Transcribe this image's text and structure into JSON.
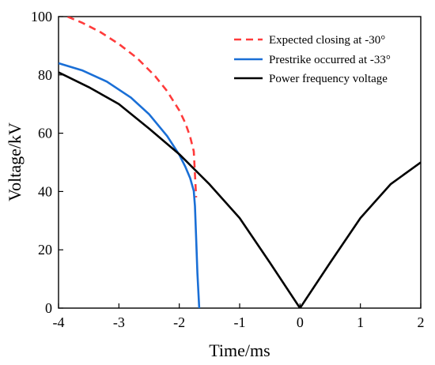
{
  "chart_data": {
    "type": "line",
    "xlabel": "Time/ms",
    "ylabel": "Voltage/kV",
    "xlim": [
      -4,
      2
    ],
    "ylim": [
      0,
      100
    ],
    "xticks": [
      -4,
      -3,
      -2,
      -1,
      0,
      1,
      2
    ],
    "yticks": [
      0,
      20,
      40,
      60,
      80,
      100
    ],
    "grid": false,
    "legend_position": "top-right",
    "series": [
      {
        "name": "Expected closing at -30°",
        "color": "#ff3b3b",
        "style": "dashed",
        "x": [
          -3.85,
          -3.6,
          -3.3,
          -3.0,
          -2.7,
          -2.4,
          -2.2,
          -2.0,
          -1.9,
          -1.82,
          -1.76,
          -1.72
        ],
        "y": [
          100,
          97.8,
          94.6,
          90.6,
          85.8,
          79.6,
          74.4,
          67.8,
          63.5,
          58.8,
          53.8,
          38.0
        ]
      },
      {
        "name": "Prestrike occurred at -33°",
        "color": "#1a6fd6",
        "style": "solid",
        "x": [
          -4.0,
          -3.6,
          -3.2,
          -2.8,
          -2.5,
          -2.2,
          -2.0,
          -1.9,
          -1.82,
          -1.76,
          -1.74,
          -1.72,
          -1.7,
          -1.67
        ],
        "y": [
          84.0,
          81.5,
          77.7,
          72.2,
          66.5,
          59.0,
          52.6,
          48.5,
          44.6,
          40.2,
          35.0,
          24.0,
          12.0,
          0.0
        ]
      },
      {
        "name": "Power frequency voltage",
        "color": "#000000",
        "style": "solid",
        "x": [
          -4.0,
          -3.5,
          -3.0,
          -2.5,
          -2.0,
          -1.5,
          -1.0,
          -0.5,
          0.0,
          0.5,
          1.0,
          1.5,
          2.0
        ],
        "y": [
          80.9,
          75.8,
          70.0,
          61.6,
          52.8,
          42.5,
          30.9,
          15.6,
          0.0,
          15.6,
          30.9,
          42.5,
          50.0
        ]
      }
    ]
  }
}
